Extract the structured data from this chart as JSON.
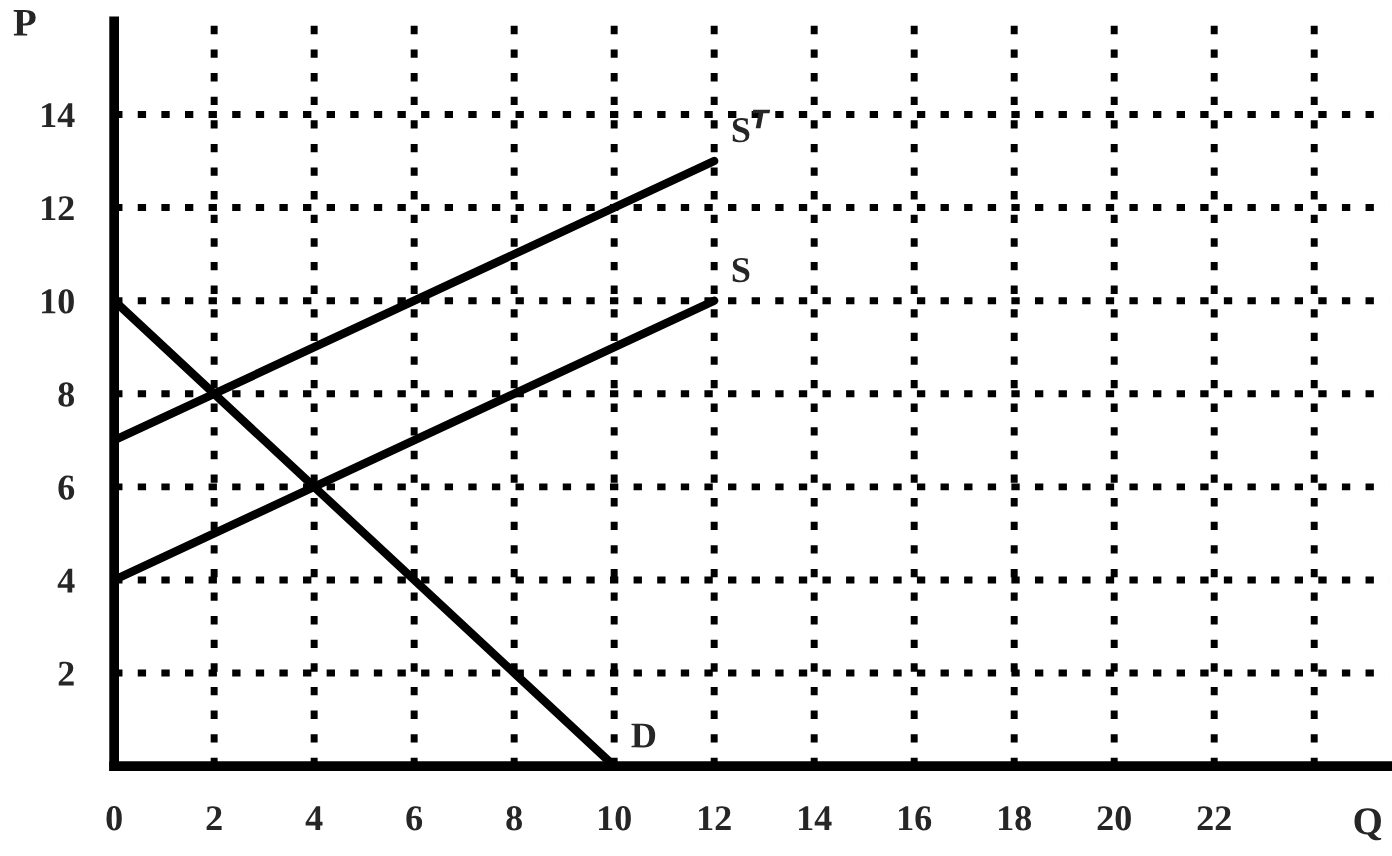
{
  "chart_data": {
    "type": "line",
    "xlabel": "Q",
    "ylabel": "P",
    "series": [
      {
        "name": "S$^{T}$",
        "color": "#000000",
        "x": [
          0,
          12
        ],
        "values": [
          7,
          13
        ]
      },
      {
        "name": "S",
        "color": "#000000",
        "x": [
          0,
          12
        ],
        "values": [
          4,
          10
        ]
      },
      {
        "name": "D",
        "color": "#000000",
        "x": [
          0,
          10
        ],
        "values": [
          10,
          0
        ]
      }
    ],
    "xlim": [
      0,
      25.5
    ],
    "ylim": [
      0,
      16
    ],
    "xticks": [
      0,
      2,
      4,
      6,
      8,
      10,
      12,
      14,
      16,
      18,
      20,
      22,
      {
        "value": 24,
        "label": null
      }
    ],
    "yticks": [
      2,
      4,
      6,
      8,
      10,
      12,
      14
    ],
    "grid": true,
    "line_style": "solid",
    "marker": "none"
  }
}
